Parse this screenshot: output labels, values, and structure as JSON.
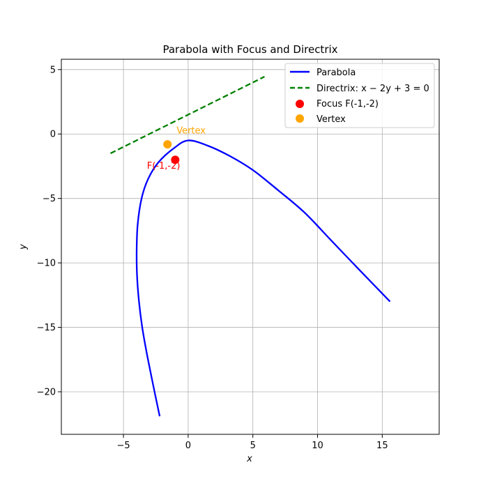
{
  "chart_data": {
    "type": "line",
    "title": "Parabola with Focus and Directrix",
    "xlabel": "x",
    "ylabel": "y",
    "xlim": [
      -9.8,
      19.4
    ],
    "ylim": [
      -23.3,
      5.8
    ],
    "xticks": [
      -5,
      0,
      5,
      10,
      15
    ],
    "yticks": [
      -20,
      -15,
      -10,
      -5,
      0,
      5
    ],
    "xtick_labels": [
      "−5",
      "0",
      "5",
      "10",
      "15"
    ],
    "ytick_labels": [
      "−20",
      "−15",
      "−10",
      "−5",
      "0",
      "5"
    ],
    "grid": true,
    "legend_position": "top-right",
    "series": [
      {
        "name": "Parabola",
        "kind": "line",
        "color": "#0000ff",
        "style": "solid",
        "x": [
          -2.2,
          -2.7,
          -3.2,
          -3.55,
          -3.8,
          -3.95,
          -3.98,
          -3.9,
          -3.6,
          -3.1,
          -2.3,
          -1.1,
          0,
          1.5,
          3.2,
          5,
          7,
          9,
          11,
          13,
          15.6
        ],
        "y": [
          -21.9,
          -19.5,
          -17,
          -15,
          -13,
          -11,
          -9,
          -7,
          -5,
          -3.5,
          -2.2,
          -1.1,
          -0.5,
          -0.9,
          -1.7,
          -2.8,
          -4.4,
          -6.1,
          -8.2,
          -10.3,
          -13
        ]
      },
      {
        "name": "Directrix: x − 2y + 3 = 0",
        "kind": "line",
        "color": "#008000",
        "style": "dashed",
        "x": [
          -6,
          5.9
        ],
        "y": [
          -1.5,
          4.45
        ]
      },
      {
        "name": "Focus F(-1,-2)",
        "kind": "scatter",
        "color": "#ff0000",
        "x": [
          -1
        ],
        "y": [
          -2
        ]
      },
      {
        "name": "Vertex",
        "kind": "scatter",
        "color": "#ffa500",
        "x": [
          -1.6
        ],
        "y": [
          -0.8
        ]
      }
    ],
    "annotations": [
      {
        "text": "Vertex",
        "x": -0.9,
        "y": 0.05,
        "color": "#ffa500",
        "anchor": "start"
      },
      {
        "text": "F(-1,-2)",
        "x": -1.9,
        "y": -2.7,
        "color": "#ff0000",
        "anchor": "middle"
      }
    ]
  }
}
